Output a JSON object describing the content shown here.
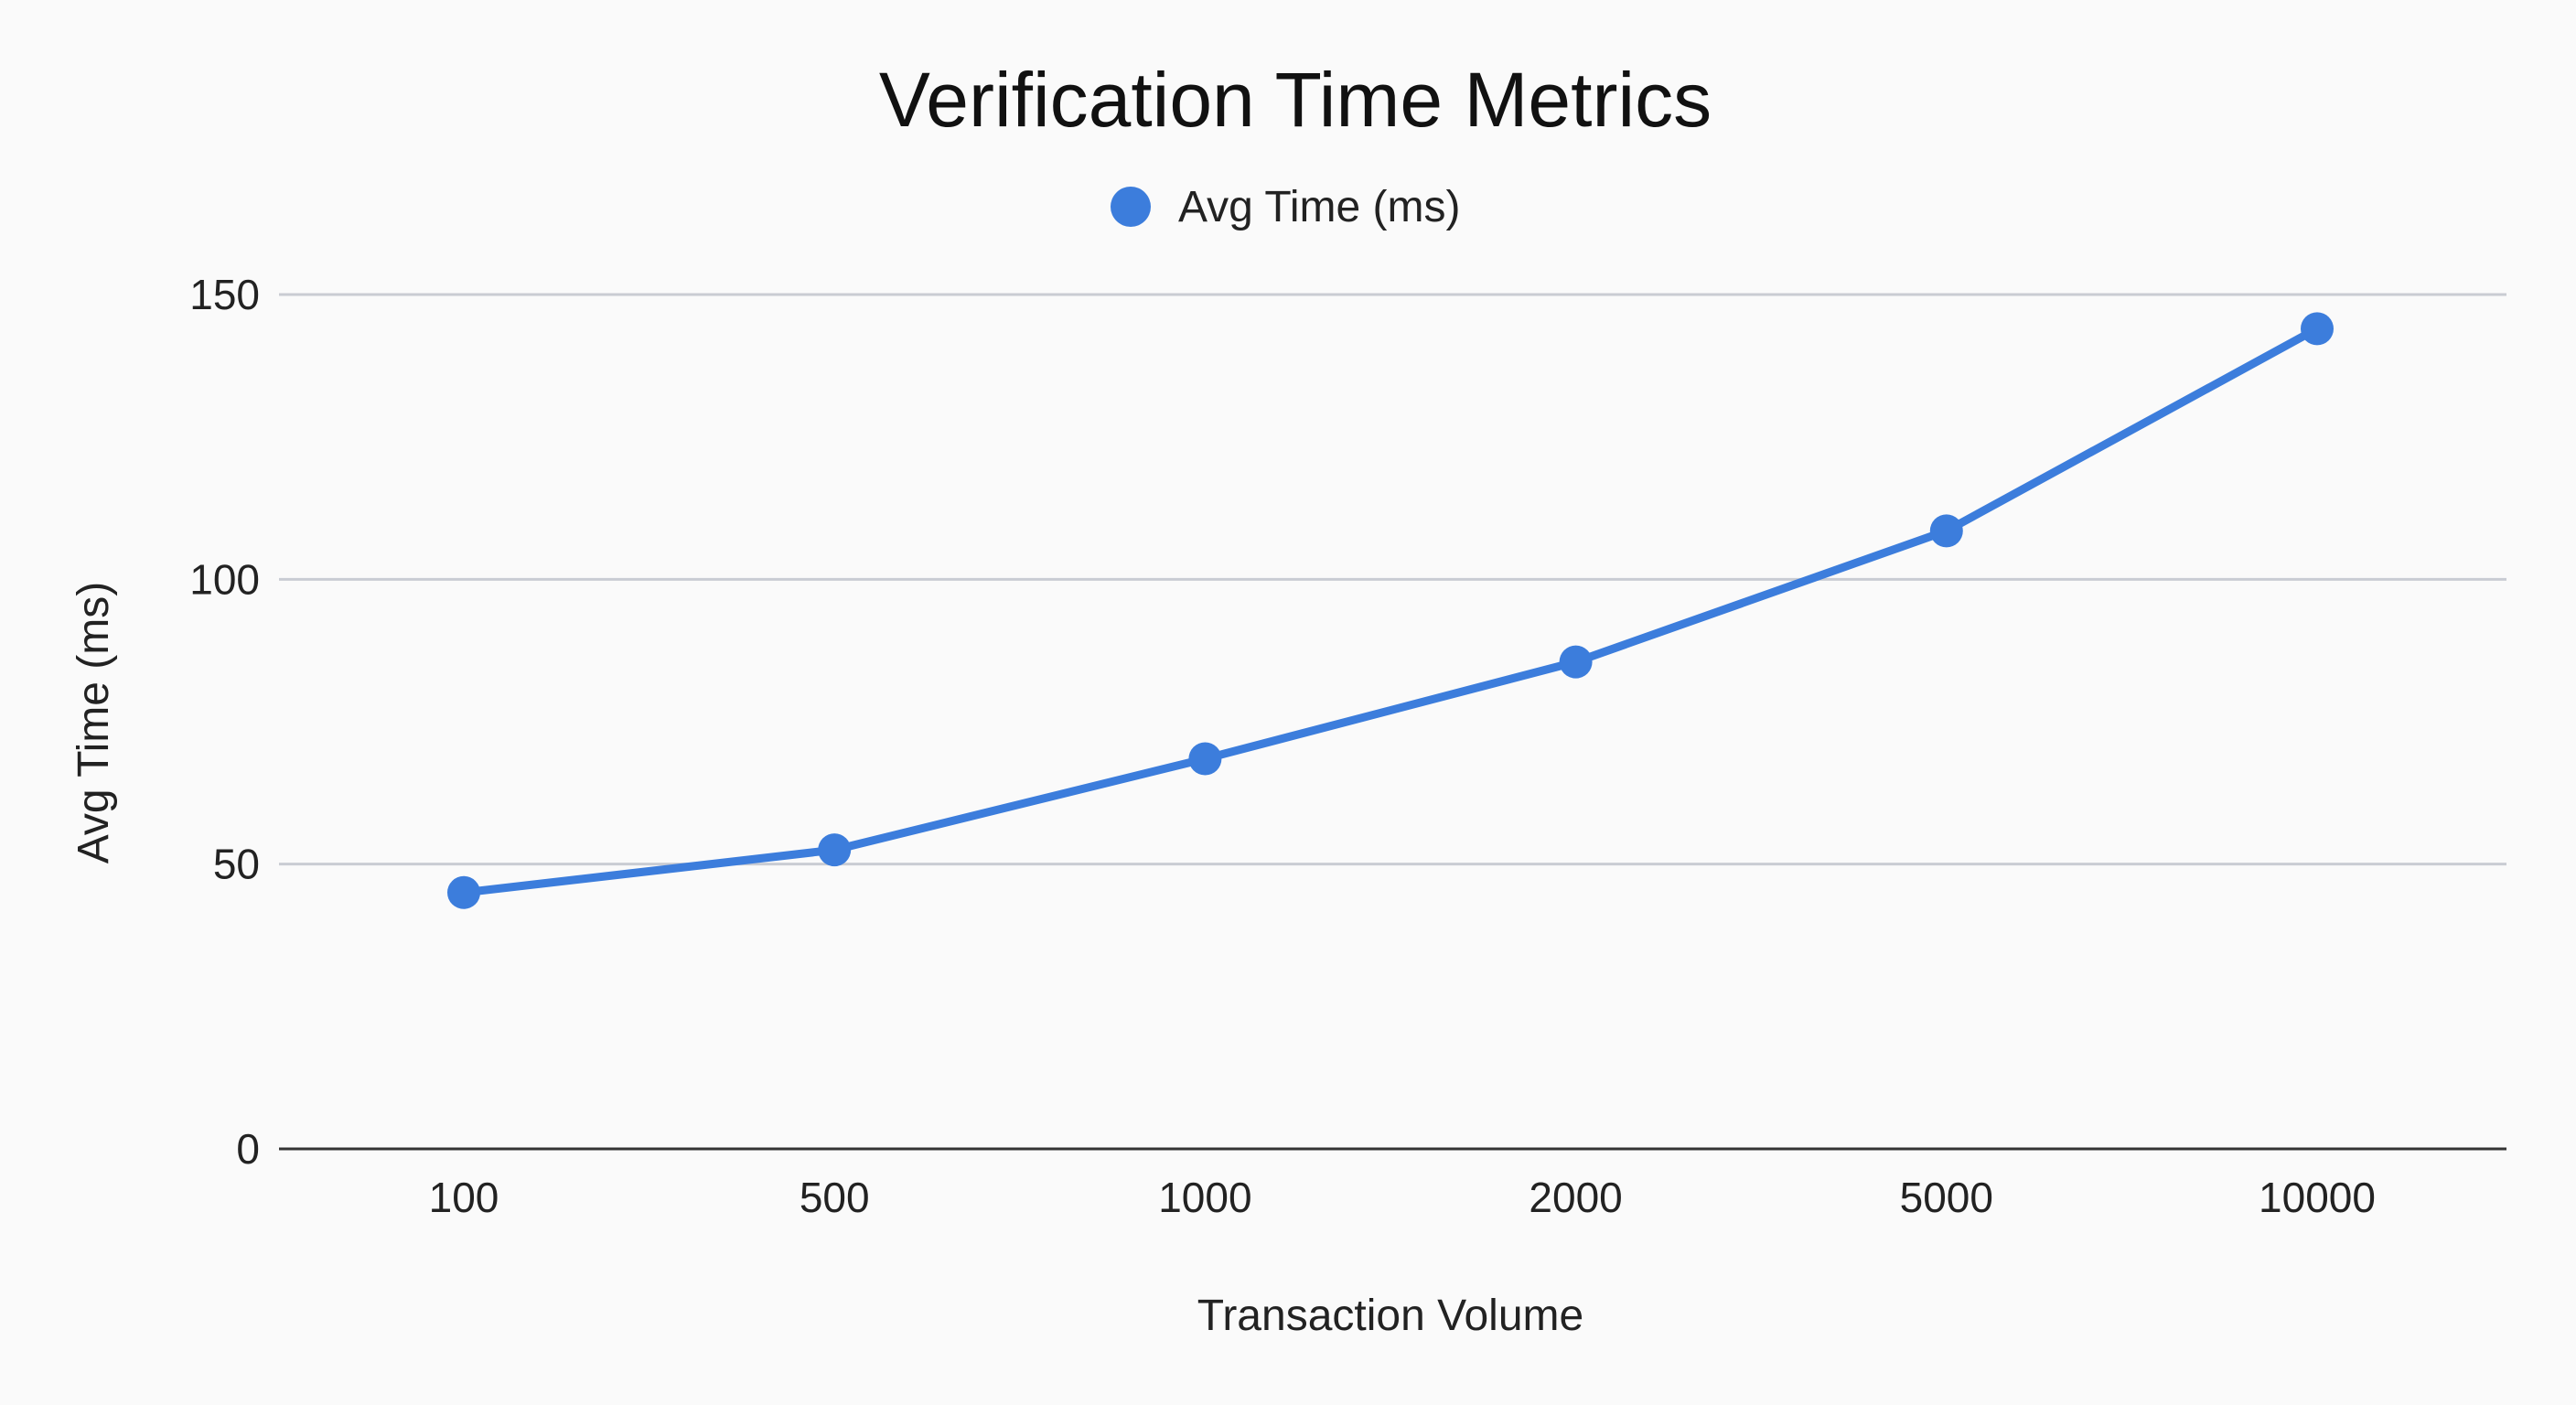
{
  "chart_data": {
    "type": "line",
    "title": "Verification Time Metrics",
    "xlabel": "Transaction Volume",
    "ylabel": "Avg Time (ms)",
    "categories": [
      "100",
      "500",
      "1000",
      "2000",
      "5000",
      "10000"
    ],
    "series": [
      {
        "name": "Avg Time (ms)",
        "values": [
          45,
          52.5,
          68.5,
          85.5,
          108.5,
          144
        ],
        "color": "#3c7ddc"
      }
    ],
    "ylim": [
      0,
      150
    ],
    "yticks": [
      "0",
      "50",
      "100",
      "150"
    ],
    "grid": true,
    "legend_position": "top-center"
  }
}
